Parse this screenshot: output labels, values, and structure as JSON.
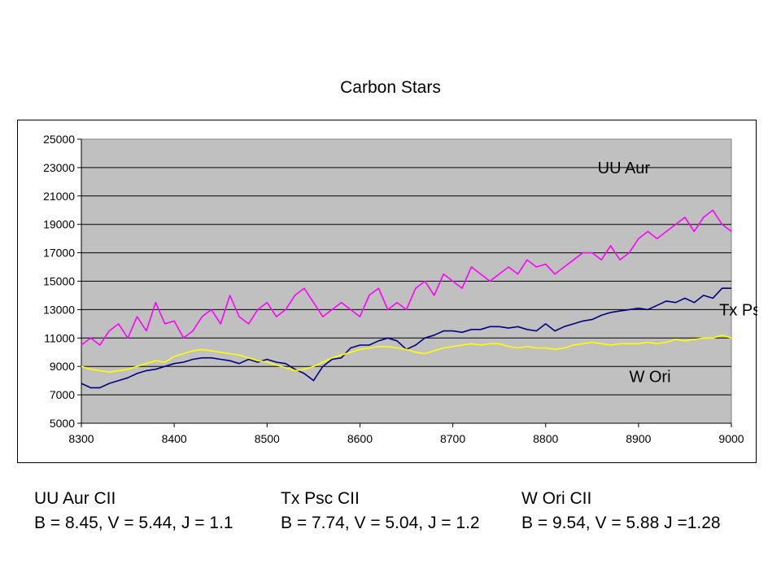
{
  "chart_data": {
    "type": "line",
    "title": "Carbon Stars",
    "xlabel": "",
    "ylabel": "",
    "xlim": [
      8300,
      9000
    ],
    "ylim": [
      5000,
      25000
    ],
    "x_ticks": [
      8300,
      8400,
      8500,
      8600,
      8700,
      8800,
      8900,
      9000
    ],
    "y_ticks": [
      5000,
      7000,
      9000,
      11000,
      13000,
      15000,
      17000,
      19000,
      21000,
      23000,
      25000
    ],
    "grid": "horizontal",
    "plot_background": "#c0c0c0",
    "x_step": 10,
    "series": [
      {
        "name": "UU Aur",
        "color": "#ff00ff",
        "x_start": 8300,
        "x_end": 8970,
        "values": [
          10500,
          11000,
          10500,
          11500,
          12000,
          11000,
          12500,
          11500,
          13500,
          12000,
          12200,
          11000,
          11500,
          12500,
          13000,
          12000,
          14000,
          12500,
          12000,
          13000,
          13500,
          12500,
          13000,
          14000,
          14500,
          13500,
          12500,
          13000,
          13500,
          13000,
          12500,
          14000,
          14500,
          13000,
          13500,
          13000,
          14500,
          15000,
          14000,
          15500,
          15000,
          14500,
          16000,
          15500,
          15000,
          15500,
          16000,
          15500,
          16500,
          16000,
          16200,
          15500,
          16000,
          16500,
          17000,
          17000,
          16500,
          17500,
          16500,
          17000,
          18000,
          18500,
          18000,
          18500,
          19000,
          19500,
          18500,
          19500,
          20000,
          19000,
          18500
        ]
      },
      {
        "name": "Tx Psc",
        "color": "#000080",
        "x_start": 8300,
        "x_end": 8970,
        "values": [
          7800,
          7500,
          7500,
          7800,
          8000,
          8200,
          8500,
          8700,
          8800,
          9000,
          9200,
          9300,
          9500,
          9600,
          9600,
          9500,
          9400,
          9200,
          9500,
          9300,
          9500,
          9300,
          9200,
          8800,
          8500,
          8000,
          9000,
          9500,
          9600,
          10300,
          10500,
          10500,
          10800,
          11000,
          10800,
          10200,
          10500,
          11000,
          11200,
          11500,
          11500,
          11400,
          11600,
          11600,
          11800,
          11800,
          11700,
          11800,
          11600,
          11500,
          12000,
          11500,
          11800,
          12000,
          12200,
          12300,
          12600,
          12800,
          12900,
          13000,
          13100,
          13000,
          13300,
          13600,
          13500,
          13800,
          13500,
          14000,
          13800,
          14500,
          14500
        ]
      },
      {
        "name": "W Ori",
        "color": "#ffff00",
        "x_start": 8300,
        "x_end": 8970,
        "values": [
          9000,
          8800,
          8700,
          8600,
          8700,
          8800,
          9000,
          9200,
          9400,
          9300,
          9700,
          9900,
          10100,
          10200,
          10100,
          10000,
          9900,
          9800,
          9600,
          9400,
          9300,
          9100,
          8900,
          8700,
          8800,
          9000,
          9300,
          9600,
          9800,
          10000,
          10200,
          10300,
          10400,
          10400,
          10300,
          10200,
          10000,
          9900,
          10100,
          10300,
          10400,
          10500,
          10600,
          10500,
          10600,
          10600,
          10400,
          10300,
          10400,
          10300,
          10300,
          10200,
          10300,
          10500,
          10600,
          10700,
          10600,
          10500,
          10600,
          10600,
          10600,
          10700,
          10600,
          10700,
          10900,
          10800,
          10900,
          11000,
          11000,
          11200,
          11000
        ]
      }
    ],
    "annotations": [
      {
        "text": "UU Aur",
        "x": 8856,
        "y": 23000
      },
      {
        "text": "Tx Psc",
        "x": 8987,
        "y": 13000
      },
      {
        "text": "W Ori",
        "x": 8890,
        "y": 8300
      }
    ]
  },
  "footer": {
    "uu_aur": {
      "name": "UU Aur CII",
      "mags": "B = 8.45, V = 5.44, J = 1.1"
    },
    "tx_psc": {
      "name": "Tx Psc CII",
      "mags": "B = 7.74, V = 5.04, J = 1.2"
    },
    "w_ori": {
      "name": "W Ori CII",
      "mags": "B = 9.54, V = 5.88 J =1.28"
    }
  }
}
